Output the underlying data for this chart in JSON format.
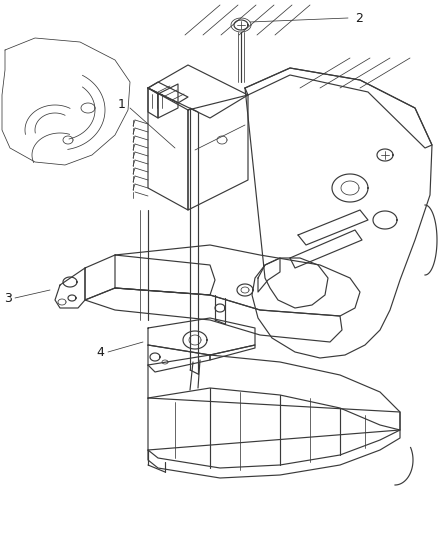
{
  "background_color": "#ffffff",
  "line_color": "#3a3a3a",
  "label_color": "#1a1a1a",
  "figsize": [
    4.38,
    5.33
  ],
  "dpi": 100,
  "lw": 0.85,
  "lw_thin": 0.55,
  "lw_thick": 1.1
}
